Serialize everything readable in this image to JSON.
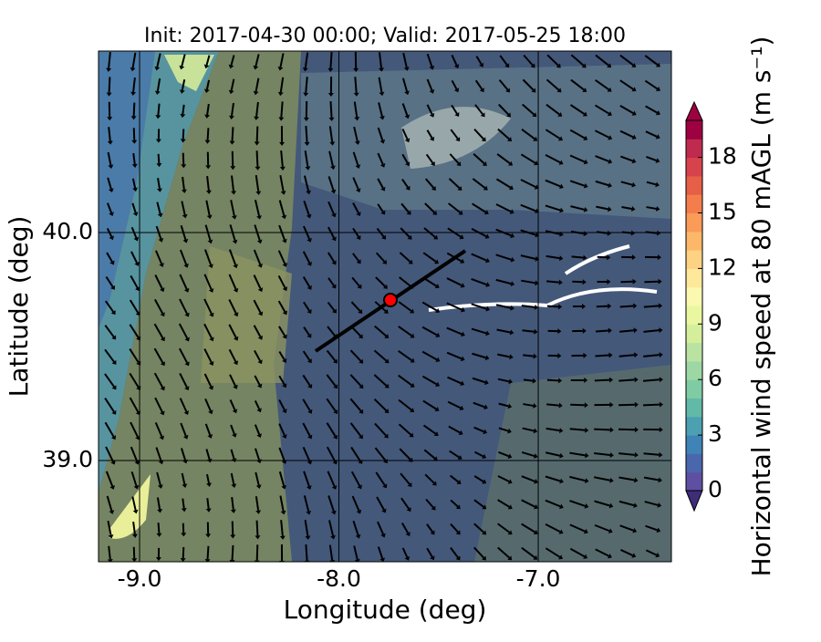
{
  "chart_data": {
    "type": "map",
    "title": "Init: 2017-04-30 00:00; Valid: 2017-05-25 18:00",
    "x_label": "Longitude (deg)",
    "y_label": "Latitude (deg)",
    "xlim": [
      -9.206,
      -6.332
    ],
    "ylim": [
      38.556,
      40.796
    ],
    "xticks": [
      {
        "value": -9,
        "label": "-9.0"
      },
      {
        "value": -8,
        "label": "-8.0"
      },
      {
        "value": -7,
        "label": "-7.0"
      }
    ],
    "yticks": [
      {
        "value": 39,
        "label": "39.0"
      },
      {
        "value": 40,
        "label": "40.0"
      }
    ],
    "grid": true,
    "colorbar": {
      "label": "Horizontal wind speed at 80 mAGL (m s⁻¹)",
      "lim": [
        0,
        20
      ],
      "ticks": [
        0,
        3,
        6,
        9,
        12,
        15,
        18
      ],
      "colors": [
        "#5e4fa2",
        "#4a67ad",
        "#3f83b7",
        "#4ba0b1",
        "#62b9a7",
        "#7fcba4",
        "#9dd7a4",
        "#bae3a2",
        "#d5ee9b",
        "#ebf7a0",
        "#fbf8b0",
        "#fee89a",
        "#fed283",
        "#fdb768",
        "#fa9b58",
        "#f47d4c",
        "#e65f47",
        "#d7434d",
        "#bf2b4f",
        "#9e0142"
      ]
    }
  }
}
